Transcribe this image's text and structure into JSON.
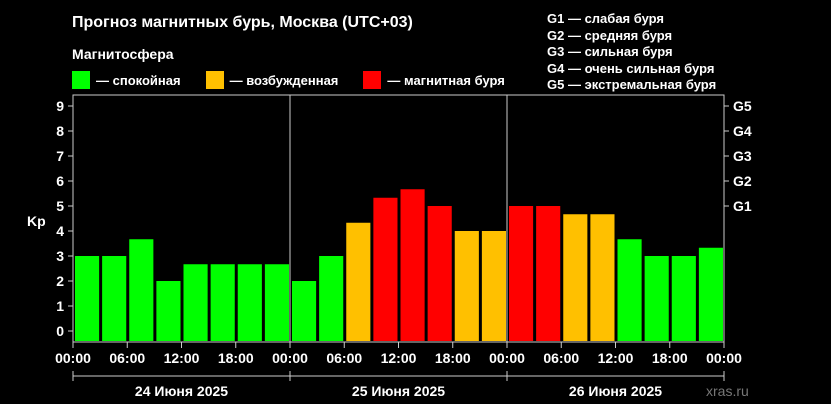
{
  "header": {
    "title": "Прогноз магнитных бурь, Москва (UTC+03)",
    "subtitle": "Магнитосфера"
  },
  "legend": [
    {
      "label": "— спокойная",
      "color": "#00ff00"
    },
    {
      "label": "— возбужденная",
      "color": "#ffc000"
    },
    {
      "label": "— магнитная буря",
      "color": "#ff0000"
    }
  ],
  "storm_legend": [
    "G1 — слабая буря",
    "G2 — средняя буря",
    "G3 — сильная буря",
    "G4 — очень сильная буря",
    "G5 — экстремальная буря"
  ],
  "watermark": "xras.ru",
  "chart_data": {
    "type": "bar",
    "ylabel": "Kp",
    "ylim": [
      0,
      9
    ],
    "y_ticks": [
      "0",
      "1",
      "2",
      "3",
      "4",
      "5",
      "6",
      "7",
      "8",
      "9"
    ],
    "right_ticks": [
      {
        "value": 5,
        "label": "G1"
      },
      {
        "value": 6,
        "label": "G2"
      },
      {
        "value": 7,
        "label": "G3"
      },
      {
        "value": 8,
        "label": "G4"
      },
      {
        "value": 9,
        "label": "G5"
      }
    ],
    "x_tick_labels": [
      "00:00",
      "06:00",
      "12:00",
      "18:00",
      "00:00",
      "06:00",
      "12:00",
      "18:00",
      "00:00",
      "06:00",
      "12:00",
      "18:00",
      "00:00"
    ],
    "days": [
      "24 Июня 2025",
      "25 Июня 2025",
      "26 Июня 2025"
    ],
    "values": [
      3,
      3,
      3.67,
      2,
      2.67,
      2.67,
      2.67,
      2.67,
      2,
      3,
      4.33,
      5.33,
      5.67,
      5,
      4,
      4,
      5,
      5,
      4.67,
      4.67,
      3.67,
      3,
      3,
      3.33
    ],
    "colors": {
      "quiet": "#00ff00",
      "active": "#ffc000",
      "storm": "#ff0000"
    },
    "grid": false
  }
}
